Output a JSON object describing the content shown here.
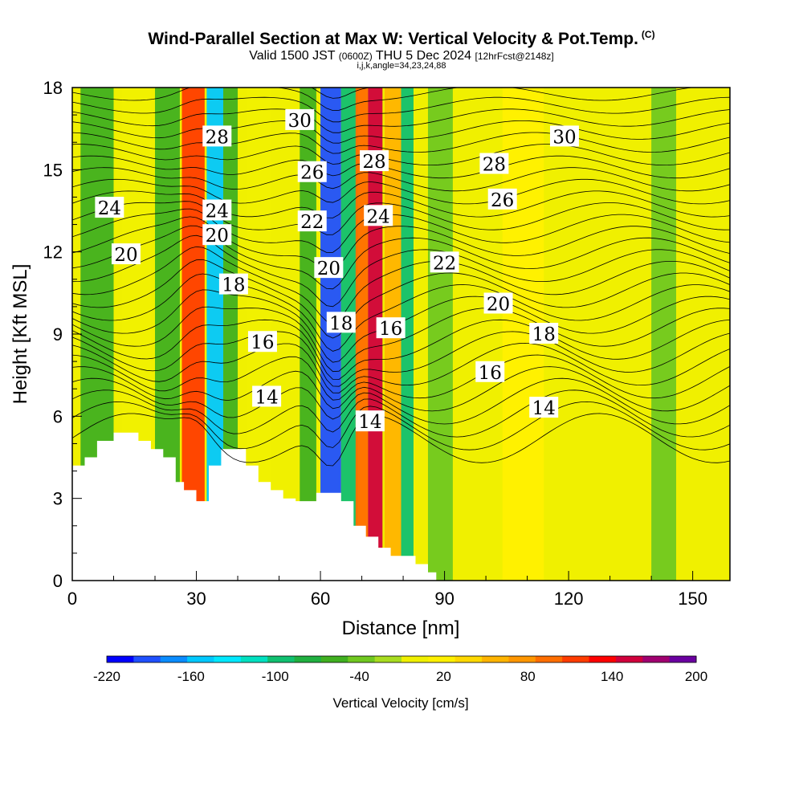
{
  "header": {
    "title": "Wind-Parallel Section at Max W: Vertical Velocity & Pot.Temp.",
    "copyright": "(C)",
    "valid_prefix": "Valid 1500 JST",
    "valid_utc": "(0600Z)",
    "valid_date": "THU 5 Dec 2024",
    "forecast_tag": "[12hrFcst@2148z]",
    "indices": "i,j,k,angle=34,23,24,88"
  },
  "chart_data": {
    "type": "heatmap",
    "title": "Wind-Parallel Section at Max W: Vertical Velocity & Pot.Temp.",
    "xlabel": "Distance [nm]",
    "ylabel": "Height [Kft MSL]",
    "xlim": [
      0,
      159
    ],
    "ylim": [
      0,
      18
    ],
    "xticks": [
      "0",
      "30",
      "60",
      "90",
      "120",
      "150"
    ],
    "yticks": [
      "0",
      "3",
      "6",
      "9",
      "12",
      "15",
      "18"
    ],
    "fill_field": "Vertical Velocity [cm/s]",
    "contour_field": "Potential Temperature",
    "colorbar": {
      "label": "Vertical Velocity [cm/s]",
      "levels": [
        -220,
        -200,
        -180,
        -160,
        -140,
        -120,
        -100,
        -80,
        -60,
        -40,
        -20,
        0,
        20,
        40,
        60,
        80,
        100,
        120,
        140,
        160,
        180,
        200
      ],
      "tick_labels": [
        "-220",
        "-160",
        "-100",
        "-40",
        "20",
        "80",
        "140",
        "200"
      ],
      "colors": [
        "#0000ff",
        "#1f50ff",
        "#0a8cff",
        "#00c8ff",
        "#00e8ff",
        "#00e0c0",
        "#10c070",
        "#20b040",
        "#40b020",
        "#70c820",
        "#a8dc20",
        "#f0f000",
        "#fff000",
        "#ffd800",
        "#ffb400",
        "#ff9600",
        "#ff6e00",
        "#ff3c00",
        "#ff0000",
        "#d0003c",
        "#a00070",
        "#6a00a0"
      ]
    },
    "bands": [
      {
        "x": 2,
        "width": 8,
        "w": -50
      },
      {
        "x": 12,
        "width": 7,
        "w": 10
      },
      {
        "x": 20,
        "width": 6,
        "w": -55
      },
      {
        "x": 26.5,
        "width": 5.5,
        "w": 130
      },
      {
        "x": 32.5,
        "width": 4,
        "w": -150
      },
      {
        "x": 36.5,
        "width": 3.5,
        "w": -60
      },
      {
        "x": 42,
        "width": 6,
        "w": 10
      },
      {
        "x": 55,
        "width": 4,
        "w": -45
      },
      {
        "x": 60,
        "width": 5,
        "w": -200
      },
      {
        "x": 65,
        "width": 4,
        "w": -90
      },
      {
        "x": 68.5,
        "width": 3,
        "w": 100
      },
      {
        "x": 71.5,
        "width": 3.5,
        "w": 175
      },
      {
        "x": 75.5,
        "width": 4,
        "w": 60
      },
      {
        "x": 79.5,
        "width": 3,
        "w": -90
      },
      {
        "x": 86,
        "width": 6,
        "w": -40
      },
      {
        "x": 104,
        "width": 10,
        "w": 30
      },
      {
        "x": 140,
        "width": 6,
        "w": -35
      }
    ],
    "contour_labels": [
      {
        "text": "28",
        "x": 35,
        "y": 16.2
      },
      {
        "text": "30",
        "x": 55,
        "y": 16.8
      },
      {
        "text": "24",
        "x": 35,
        "y": 13.5
      },
      {
        "text": "26",
        "x": 58,
        "y": 14.9
      },
      {
        "text": "28",
        "x": 73,
        "y": 15.3
      },
      {
        "text": "24",
        "x": 9,
        "y": 13.6
      },
      {
        "text": "20",
        "x": 35,
        "y": 12.6
      },
      {
        "text": "22",
        "x": 58,
        "y": 13.1
      },
      {
        "text": "24",
        "x": 74,
        "y": 13.3
      },
      {
        "text": "30",
        "x": 119,
        "y": 16.2
      },
      {
        "text": "28",
        "x": 102,
        "y": 15.2
      },
      {
        "text": "26",
        "x": 104,
        "y": 13.9
      },
      {
        "text": "20",
        "x": 13,
        "y": 11.9
      },
      {
        "text": "20",
        "x": 62,
        "y": 11.4
      },
      {
        "text": "22",
        "x": 90,
        "y": 11.6
      },
      {
        "text": "18",
        "x": 39,
        "y": 10.8
      },
      {
        "text": "20",
        "x": 103,
        "y": 10.1
      },
      {
        "text": "18",
        "x": 65,
        "y": 9.4
      },
      {
        "text": "16",
        "x": 77,
        "y": 9.2
      },
      {
        "text": "18",
        "x": 114,
        "y": 9.0
      },
      {
        "text": "16",
        "x": 46,
        "y": 8.7
      },
      {
        "text": "16",
        "x": 101,
        "y": 7.6
      },
      {
        "text": "14",
        "x": 47,
        "y": 6.7
      },
      {
        "text": "14",
        "x": 114,
        "y": 6.3
      },
      {
        "text": "14",
        "x": 72,
        "y": 5.8
      }
    ]
  }
}
